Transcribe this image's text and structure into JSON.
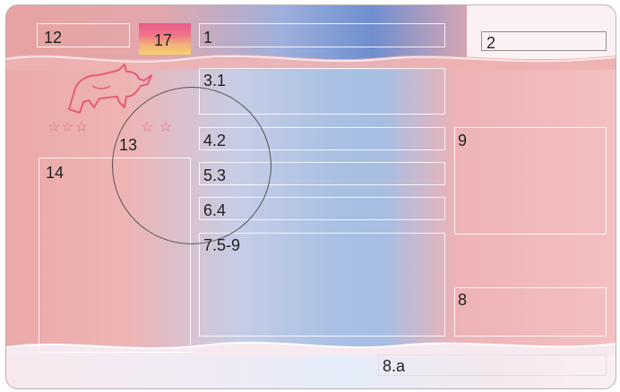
{
  "card": {
    "fields": {
      "f12": "12",
      "f17": "17",
      "f1": "1",
      "f2": "2",
      "f3_1": "3.1",
      "f4_2": "4.2",
      "f5_3": "5.3",
      "f6_4": "6.4",
      "f7_5_9": "7.5-9",
      "f13": "13",
      "f14": "14",
      "f9": "9",
      "f8": "8",
      "f8a": "8.a"
    },
    "stars_left": "☆☆☆",
    "stars_right": "☆ ☆",
    "emblem_icon": "bull-icon",
    "colors": {
      "pink": "#eba9a9",
      "blue": "#a9c0e4",
      "accent": "#e86b82"
    }
  }
}
